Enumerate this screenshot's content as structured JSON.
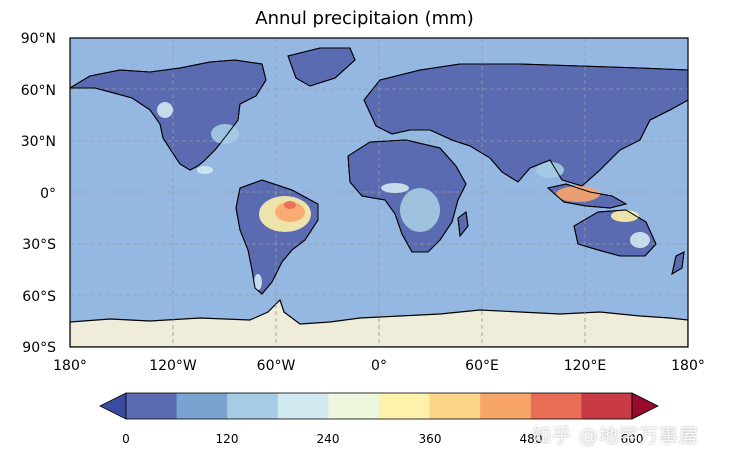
{
  "title": "Annul precipitaion (mm)",
  "colors": {
    "ocean": "#95b8e3",
    "antarctica": "#efecda",
    "land_dry": "#5a6bb2",
    "coast": "#000000",
    "grid": "#9a9a9a"
  },
  "axes": {
    "lat_ticks": [
      "90°N",
      "60°N",
      "30°N",
      "0°",
      "30°S",
      "60°S",
      "90°S"
    ],
    "lon_ticks": [
      "180°",
      "120°W",
      "60°W",
      "0°",
      "60°E",
      "120°E",
      "180°"
    ]
  },
  "colorbar": {
    "colors": [
      "#5a6bb2",
      "#7aa3d0",
      "#a5cce2",
      "#d2e9f1",
      "#edf7dd",
      "#fdf2ab",
      "#fdd587",
      "#f8a56a",
      "#ea6d56",
      "#c93a47"
    ],
    "under_color": "#3b4ba0",
    "over_color": "#9a0a2b",
    "tick_labels": [
      "0",
      "120",
      "240",
      "360",
      "480",
      "600"
    ]
  },
  "watermark": "知乎 @地学万事屋"
}
